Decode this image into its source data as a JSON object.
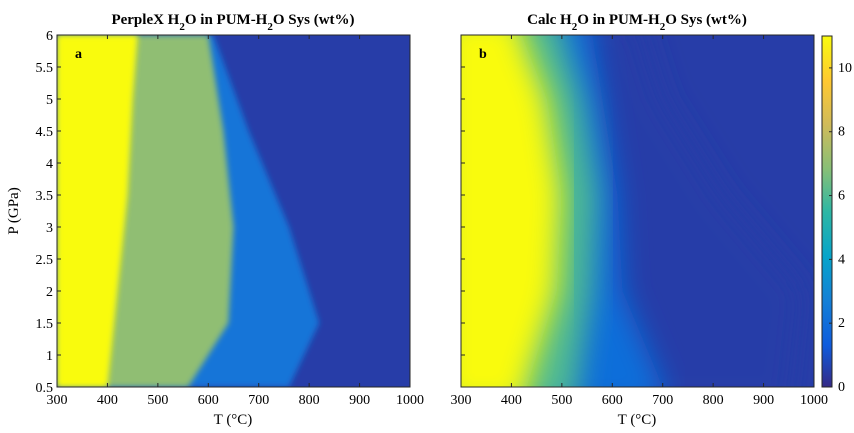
{
  "chart_data": [
    {
      "type": "heatmap",
      "panel": "a",
      "title_parts": [
        "PerpleX H",
        "2",
        "O in PUM-H",
        "2",
        "O Sys (wt%)"
      ],
      "xlabel": "T (°C)",
      "ylabel": "P (GPa)",
      "xlim": [
        300,
        1000
      ],
      "ylim": [
        0.5,
        6
      ],
      "xticks": [
        300,
        400,
        500,
        600,
        700,
        800,
        900,
        1000
      ],
      "yticks": [
        0.5,
        1,
        1.5,
        2,
        2.5,
        3,
        3.5,
        4,
        4.5,
        5,
        5.5,
        6
      ],
      "regions": [
        {
          "value": 11,
          "boundary_T_at_P": [
            [
              0.5,
              400
            ],
            [
              2,
              420
            ],
            [
              3.5,
              440
            ],
            [
              5,
              450
            ],
            [
              6,
              460
            ]
          ]
        },
        {
          "value": 7,
          "boundary_T_at_P": [
            [
              0.5,
              560
            ],
            [
              1.5,
              640
            ],
            [
              3,
              650
            ],
            [
              4.5,
              630
            ],
            [
              6,
              600
            ]
          ]
        },
        {
          "value": 2.3,
          "boundary_T_at_P": [
            [
              0.5,
              760
            ],
            [
              1.5,
              820
            ],
            [
              3,
              760
            ],
            [
              4.5,
              680
            ],
            [
              6,
              610
            ]
          ]
        },
        {
          "value": 0.5,
          "boundary_T_at_P": []
        }
      ]
    },
    {
      "type": "heatmap",
      "panel": "b",
      "title_parts": [
        "Calc H",
        "2",
        "O in PUM-H",
        "2",
        "O Sys (wt%)"
      ],
      "xlabel": "T (°C)",
      "xlim": [
        300,
        1000
      ],
      "ylim": [
        0.5,
        6
      ],
      "xticks": [
        300,
        400,
        500,
        600,
        700,
        800,
        900,
        1000
      ],
      "value_bands": [
        {
          "value": 11,
          "T_at_P": [
            [
              0.5,
              430
            ],
            [
              2,
              490
            ],
            [
              3.5,
              500
            ],
            [
              5,
              470
            ],
            [
              6,
              420
            ]
          ]
        },
        {
          "value": 6,
          "T_at_P": [
            [
              0.5,
              530
            ],
            [
              2,
              560
            ],
            [
              3.5,
              570
            ],
            [
              5,
              540
            ],
            [
              6,
              500
            ]
          ]
        },
        {
          "value": 2,
          "T_at_P": [
            [
              0.5,
              700
            ],
            [
              2,
              620
            ],
            [
              3.5,
              610
            ],
            [
              5,
              580
            ],
            [
              6,
              560
            ]
          ]
        },
        {
          "value": 0.5,
          "T_at_P": [
            [
              0.5,
              960
            ],
            [
              2,
              980
            ],
            [
              3.5,
              820
            ],
            [
              5,
              700
            ],
            [
              6,
              660
            ]
          ]
        }
      ],
      "colorbar": {
        "range": [
          0,
          11
        ],
        "ticks": [
          0,
          2,
          4,
          6,
          8,
          10
        ],
        "colormap": "parula"
      }
    }
  ]
}
